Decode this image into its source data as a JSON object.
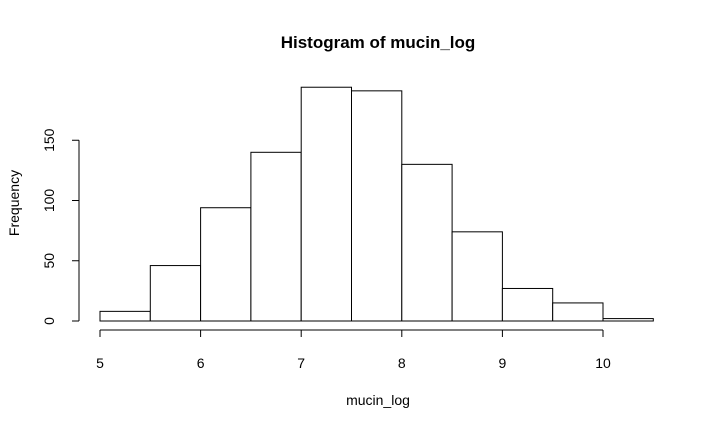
{
  "chart_data": {
    "type": "bar",
    "title": "Histogram of mucin_log",
    "xlabel": "mucin_log",
    "ylabel": "Frequency",
    "bins": [
      {
        "start": 5.0,
        "end": 5.5,
        "count": 8
      },
      {
        "start": 5.5,
        "end": 6.0,
        "count": 46
      },
      {
        "start": 6.0,
        "end": 6.5,
        "count": 94
      },
      {
        "start": 6.5,
        "end": 7.0,
        "count": 140
      },
      {
        "start": 7.0,
        "end": 7.5,
        "count": 194
      },
      {
        "start": 7.5,
        "end": 8.0,
        "count": 191
      },
      {
        "start": 8.0,
        "end": 8.5,
        "count": 130
      },
      {
        "start": 8.5,
        "end": 9.0,
        "count": 74
      },
      {
        "start": 9.0,
        "end": 9.5,
        "count": 27
      },
      {
        "start": 9.5,
        "end": 10.0,
        "count": 15
      },
      {
        "start": 10.0,
        "end": 10.5,
        "count": 2
      }
    ],
    "xlim": [
      5,
      10.5
    ],
    "ylim": [
      0,
      200
    ],
    "x_ticks": [
      5,
      6,
      7,
      8,
      9,
      10
    ],
    "y_ticks": [
      0,
      50,
      100,
      150
    ],
    "grid": false,
    "bar_fill": "#ffffff",
    "bar_stroke": "#000000"
  }
}
